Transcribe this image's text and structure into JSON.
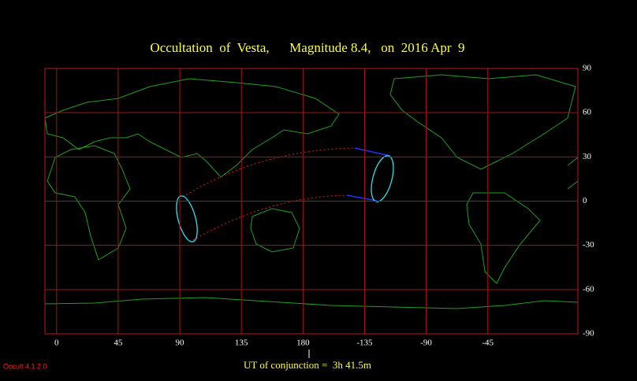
{
  "chart_data": {
    "type": "map",
    "title": "Occultation  of  Vesta,      Magnitude 8.4,   on  2016 Apr  9",
    "xlim": [
      -8.5,
      380.8
    ],
    "xticks": [
      0,
      45,
      90,
      135,
      180,
      {
        "value": 225,
        "label": "-135"
      },
      {
        "value": 270,
        "label": "-90"
      },
      {
        "value": 315,
        "label": "-45"
      }
    ],
    "ylim": [
      -90,
      90
    ],
    "yticks": [
      90,
      60,
      30,
      0,
      -30,
      -60,
      -90
    ],
    "grid": true,
    "conjunction_label": "UT of conjunction =  3h 41.5m",
    "version": "Occult 4.1.2.0"
  }
}
